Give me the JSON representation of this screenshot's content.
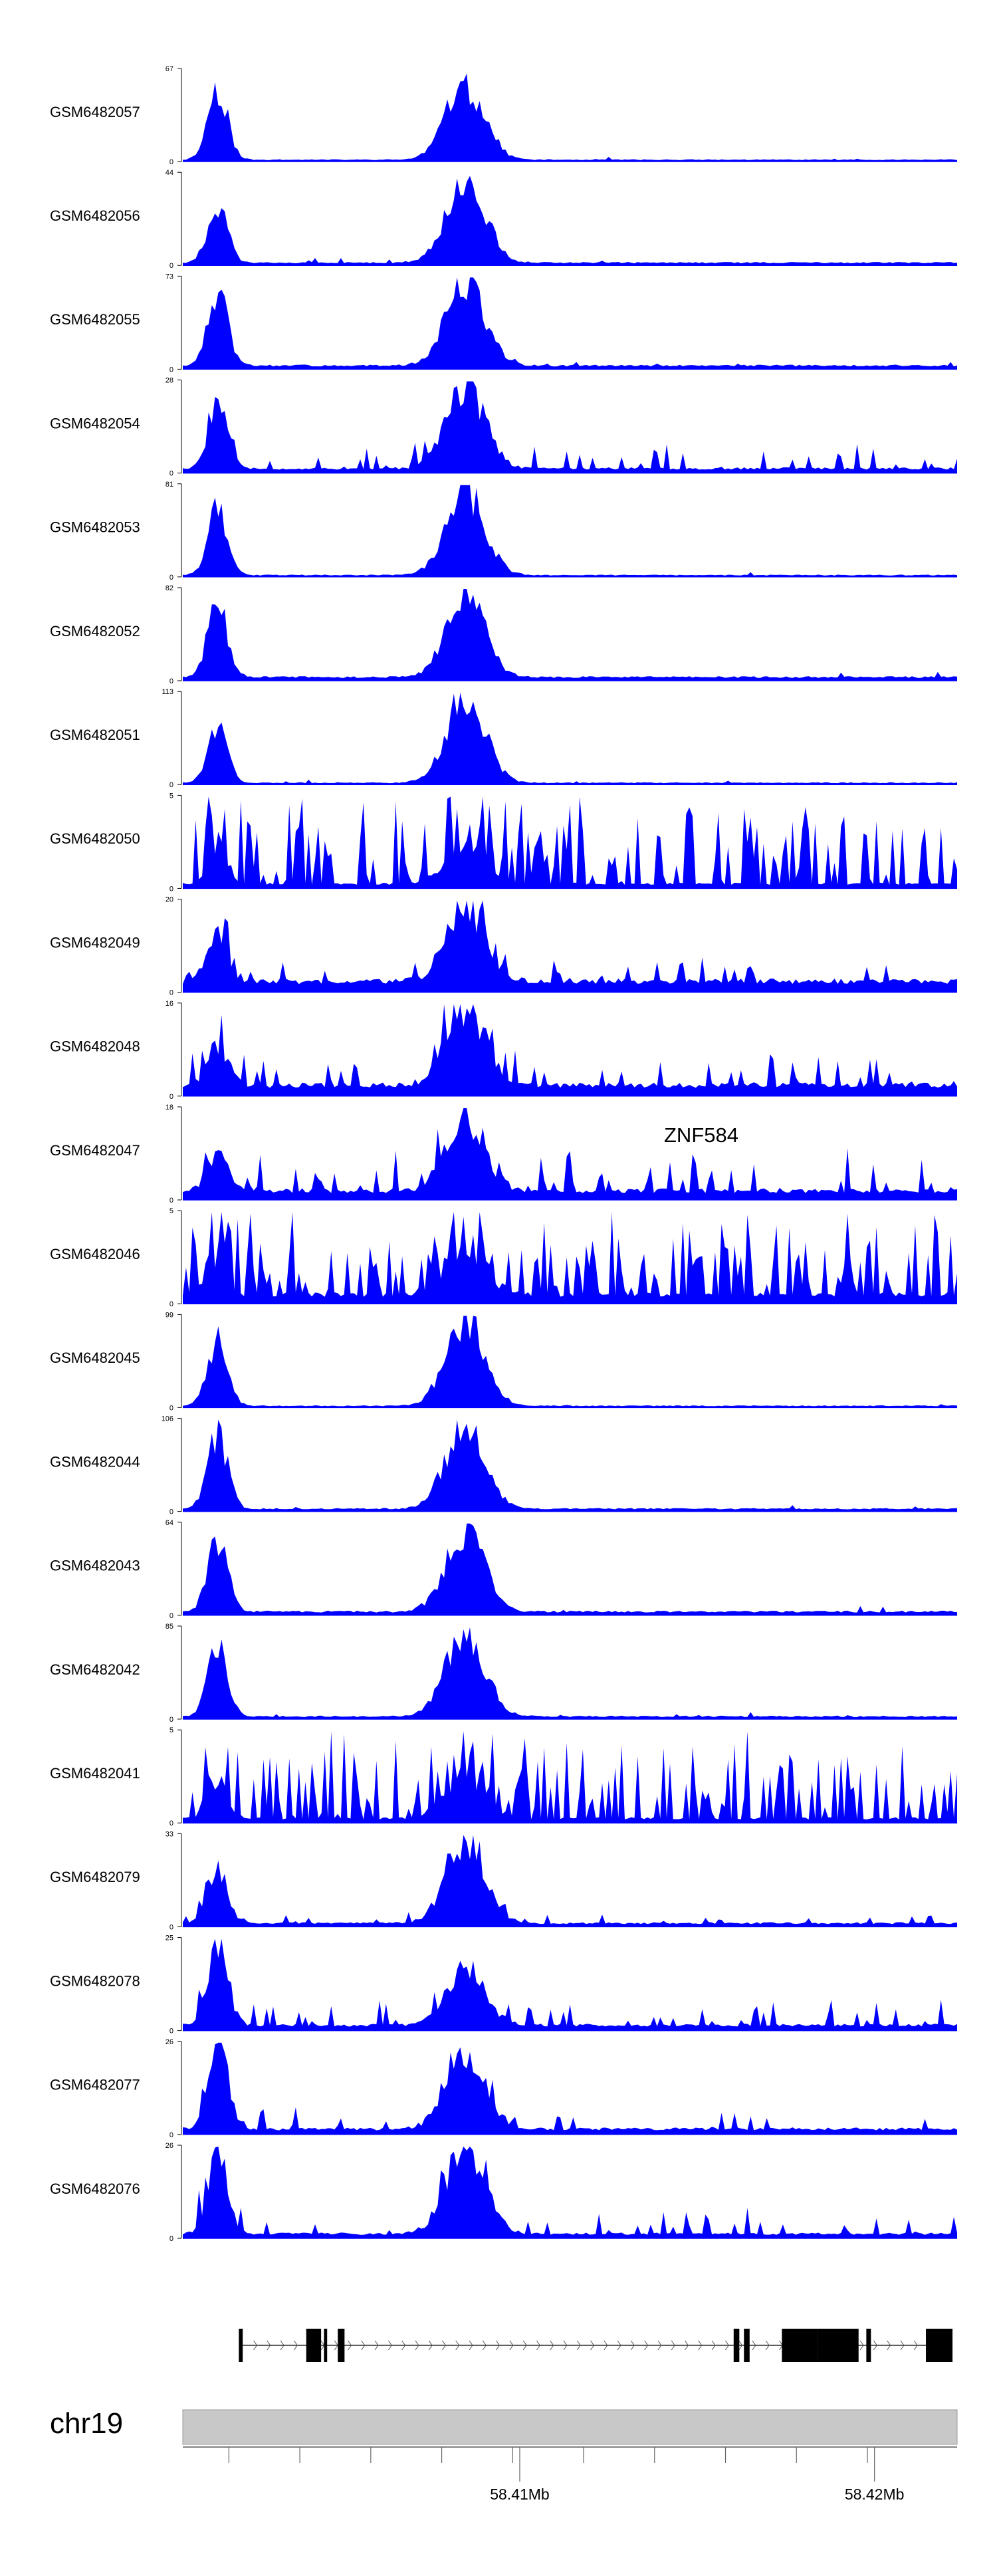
{
  "chart_data": {
    "type": "area",
    "colors": {
      "signal": "#0000ff",
      "axis": "#000000",
      "ideogram": "#c8c8c8",
      "gene": "#000000"
    },
    "tracks": [
      {
        "name": "GSM6482057",
        "ymax": 67,
        "peak_a": 0.78,
        "peak_b": 0.82,
        "bg": 0.02,
        "noise": 0.04,
        "seed": 11
      },
      {
        "name": "GSM6482056",
        "ymax": 44,
        "peak_a": 0.62,
        "peak_b": 0.95,
        "bg": 0.03,
        "noise": 0.05,
        "seed": 12
      },
      {
        "name": "GSM6482055",
        "ymax": 73,
        "peak_a": 0.78,
        "peak_b": 0.92,
        "bg": 0.04,
        "noise": 0.05,
        "seed": 13
      },
      {
        "name": "GSM6482054",
        "ymax": 28,
        "peak_a": 0.7,
        "peak_b": 0.92,
        "bg": 0.05,
        "noise": 0.25,
        "seed": 14
      },
      {
        "name": "GSM6482053",
        "ymax": 81,
        "peak_a": 0.7,
        "peak_b": 0.92,
        "bg": 0.02,
        "noise": 0.03,
        "seed": 15
      },
      {
        "name": "GSM6482052",
        "ymax": 82,
        "peak_a": 0.8,
        "peak_b": 0.92,
        "bg": 0.04,
        "noise": 0.05,
        "seed": 16
      },
      {
        "name": "GSM6482051",
        "ymax": 113,
        "peak_a": 0.62,
        "peak_b": 0.93,
        "bg": 0.02,
        "noise": 0.03,
        "seed": 17
      },
      {
        "name": "GSM6482050",
        "ymax": 5,
        "peak_a": 0.4,
        "peak_b": 0.45,
        "bg": 0.05,
        "noise": 0.85,
        "seed": 18
      },
      {
        "name": "GSM6482049",
        "ymax": 20,
        "peak_a": 0.55,
        "peak_b": 0.85,
        "bg": 0.12,
        "noise": 0.3,
        "seed": 19
      },
      {
        "name": "GSM6482048",
        "ymax": 16,
        "peak_a": 0.45,
        "peak_b": 0.88,
        "bg": 0.12,
        "noise": 0.3,
        "seed": 20
      },
      {
        "name": "GSM6482047",
        "ymax": 18,
        "peak_a": 0.45,
        "peak_b": 0.8,
        "bg": 0.1,
        "noise": 0.4,
        "seed": 21
      },
      {
        "name": "GSM6482046",
        "ymax": 5,
        "peak_a": 0.35,
        "peak_b": 0.55,
        "bg": 0.1,
        "noise": 0.85,
        "seed": 22
      },
      {
        "name": "GSM6482045",
        "ymax": 99,
        "peak_a": 0.72,
        "peak_b": 0.96,
        "bg": 0.02,
        "noise": 0.03,
        "seed": 23
      },
      {
        "name": "GSM6482044",
        "ymax": 106,
        "peak_a": 0.8,
        "peak_b": 0.92,
        "bg": 0.03,
        "noise": 0.05,
        "seed": 24
      },
      {
        "name": "GSM6482043",
        "ymax": 64,
        "peak_a": 0.8,
        "peak_b": 0.92,
        "bg": 0.04,
        "noise": 0.05,
        "seed": 25
      },
      {
        "name": "GSM6482042",
        "ymax": 85,
        "peak_a": 0.8,
        "peak_b": 0.92,
        "bg": 0.03,
        "noise": 0.05,
        "seed": 26
      },
      {
        "name": "GSM6482041",
        "ymax": 5,
        "peak_a": 0.4,
        "peak_b": 0.45,
        "bg": 0.05,
        "noise": 0.85,
        "seed": 27
      },
      {
        "name": "GSM6482079",
        "ymax": 33,
        "peak_a": 0.6,
        "peak_b": 0.95,
        "bg": 0.04,
        "noise": 0.15,
        "seed": 28
      },
      {
        "name": "GSM6482078",
        "ymax": 25,
        "peak_a": 0.95,
        "peak_b": 0.6,
        "bg": 0.06,
        "noise": 0.25,
        "seed": 29
      },
      {
        "name": "GSM6482077",
        "ymax": 26,
        "peak_a": 0.95,
        "peak_b": 0.9,
        "bg": 0.06,
        "noise": 0.2,
        "seed": 30
      },
      {
        "name": "GSM6482076",
        "ymax": 26,
        "peak_a": 0.9,
        "peak_b": 0.95,
        "bg": 0.05,
        "noise": 0.25,
        "seed": 31
      }
    ],
    "ymin_label": "0",
    "gene": {
      "name": "ZNF584",
      "exons": [
        {
          "start": 58401580,
          "end": 58401690,
          "thick": false
        },
        {
          "start": 58403480,
          "end": 58403900,
          "thick": true
        },
        {
          "start": 58403980,
          "end": 58404070,
          "thick": false
        },
        {
          "start": 58404370,
          "end": 58404560,
          "thick": true
        },
        {
          "start": 58415530,
          "end": 58415690,
          "thick": true
        },
        {
          "start": 58415820,
          "end": 58415980,
          "thick": true
        },
        {
          "start": 58416890,
          "end": 58417900,
          "thick": true
        },
        {
          "start": 58417900,
          "end": 58419050,
          "thick": true
        },
        {
          "start": 58419270,
          "end": 58419400,
          "thick": false
        },
        {
          "start": 58420950,
          "end": 58421700,
          "thick": true
        }
      ],
      "intron": [
        58401690,
        58421700
      ],
      "strand": "+"
    },
    "chromosome": {
      "label": "chr19",
      "range": [
        58400000,
        58421830
      ],
      "ticks": [
        58401300,
        58403300,
        58405300,
        58407300,
        58409300,
        58411300,
        58413300,
        58415300,
        58417300,
        58419300
      ],
      "major_ticks": [
        58409500,
        58419500
      ],
      "major_tick_labels": [
        "58.41Mb",
        "58.42Mb"
      ]
    }
  }
}
